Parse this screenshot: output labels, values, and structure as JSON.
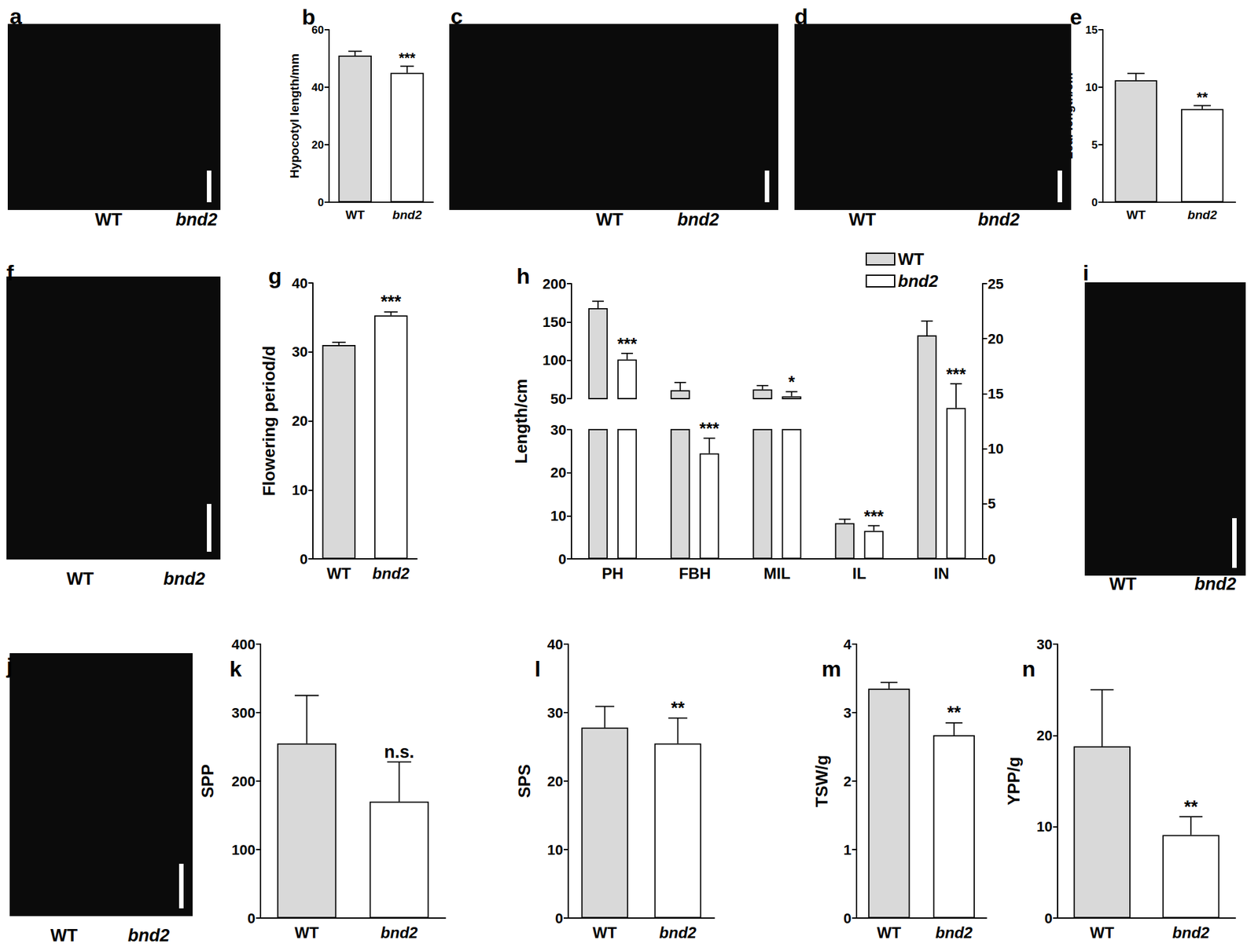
{
  "photos": [
    {
      "letter": "a",
      "labels": [
        "WT",
        "bnd2"
      ]
    },
    {
      "letter": "c",
      "labels": [
        "WT",
        "bnd2"
      ]
    },
    {
      "letter": "d",
      "labels": [
        "WT",
        "bnd2"
      ]
    },
    {
      "letter": "f",
      "labels": [
        "WT",
        "bnd2"
      ]
    },
    {
      "letter": "i",
      "labels": [
        "WT",
        "bnd2"
      ]
    },
    {
      "letter": "j",
      "labels": [
        "WT",
        "bnd2"
      ]
    }
  ],
  "chart_data": [
    {
      "type": "bar",
      "title": "b",
      "ylabel": "Hypocotyl length/mm",
      "categories": [
        "WT",
        "bnd2"
      ],
      "values": [
        51,
        45
      ],
      "errors": [
        1.5,
        2.3
      ],
      "annotations": [
        null,
        "***"
      ],
      "colors": [
        "#d9d9d9",
        "#ffffff"
      ],
      "ylim": [
        0,
        60
      ],
      "yticks": [
        0,
        20,
        40,
        60
      ],
      "grid": false
    },
    {
      "type": "bar",
      "title": "e",
      "ylabel": "Leaf length/cm",
      "categories": [
        "WT",
        "bnd2"
      ],
      "values": [
        10.6,
        8.1
      ],
      "errors": [
        0.6,
        0.3
      ],
      "annotations": [
        null,
        "**"
      ],
      "colors": [
        "#d9d9d9",
        "#ffffff"
      ],
      "ylim": [
        0,
        15
      ],
      "yticks": [
        0,
        5,
        10,
        15
      ],
      "grid": false
    },
    {
      "type": "bar",
      "title": "g",
      "ylabel": "Flowering period/d",
      "categories": [
        "WT",
        "bnd2"
      ],
      "values": [
        31,
        35.3
      ],
      "errors": [
        0.4,
        0.5
      ],
      "annotations": [
        null,
        "***"
      ],
      "colors": [
        "#d9d9d9",
        "#ffffff"
      ],
      "ylim": [
        0,
        40
      ],
      "yticks": [
        0,
        10,
        20,
        30,
        40
      ],
      "grid": false
    },
    {
      "type": "bar",
      "title": "h",
      "ylabel": "Length/cm",
      "categories": [
        "PH",
        "FBH",
        "MIL",
        "IL",
        "IN"
      ],
      "ylim": [
        0,
        200
      ],
      "ybreak": [
        30,
        50
      ],
      "yticks": [
        0,
        10,
        20,
        30,
        50,
        100,
        150,
        200
      ],
      "y2lim": [
        0,
        25
      ],
      "y2ticks": [
        0,
        5,
        10,
        15,
        20,
        25
      ],
      "legend": "upper right",
      "grid": false,
      "series": [
        {
          "name": "WT",
          "color": "#d9d9d9",
          "values": [
            168,
            61,
            62,
            8.3,
            null
          ],
          "errors": [
            9,
            10,
            5,
            0.9,
            null
          ]
        },
        {
          "name": "bnd2",
          "color": "#ffffff",
          "values": [
            101,
            24.5,
            53,
            6.5,
            null
          ],
          "errors": [
            8,
            3.5,
            6,
            1.2,
            null
          ],
          "annotations": [
            "***",
            "***",
            "*",
            "***",
            null
          ]
        },
        {
          "name": "WT",
          "color": "#d9d9d9",
          "axis": "y2",
          "values": [
            null,
            null,
            null,
            null,
            20.3
          ],
          "errors": [
            null,
            null,
            null,
            null,
            1.3
          ]
        },
        {
          "name": "bnd2",
          "color": "#ffffff",
          "axis": "y2",
          "values": [
            null,
            null,
            null,
            null,
            13.7
          ],
          "errors": [
            null,
            null,
            null,
            null,
            2.2
          ],
          "annotations": [
            null,
            null,
            null,
            null,
            "***"
          ]
        }
      ]
    },
    {
      "type": "bar",
      "title": "k",
      "ylabel": "SPP",
      "categories": [
        "WT",
        "bnd2"
      ],
      "values": [
        255,
        170
      ],
      "errors": [
        70,
        58
      ],
      "annotations": [
        null,
        "n.s."
      ],
      "colors": [
        "#d9d9d9",
        "#ffffff"
      ],
      "ylim": [
        0,
        400
      ],
      "yticks": [
        0,
        100,
        200,
        300,
        400
      ],
      "grid": false
    },
    {
      "type": "bar",
      "title": "l",
      "ylabel": "SPS",
      "categories": [
        "WT",
        "bnd2"
      ],
      "values": [
        27.8,
        25.5
      ],
      "errors": [
        3.1,
        3.7
      ],
      "annotations": [
        null,
        "**"
      ],
      "colors": [
        "#d9d9d9",
        "#ffffff"
      ],
      "ylim": [
        0,
        40
      ],
      "yticks": [
        0,
        10,
        20,
        30,
        40
      ],
      "grid": false
    },
    {
      "type": "bar",
      "title": "m",
      "ylabel": "TSW/g",
      "categories": [
        "WT",
        "bnd2"
      ],
      "values": [
        3.35,
        2.67
      ],
      "errors": [
        0.09,
        0.18
      ],
      "annotations": [
        null,
        "**"
      ],
      "colors": [
        "#d9d9d9",
        "#ffffff"
      ],
      "ylim": [
        0,
        4
      ],
      "yticks": [
        0,
        1,
        2,
        3,
        4
      ],
      "grid": false
    },
    {
      "type": "bar",
      "title": "n",
      "ylabel": "YPP/g",
      "categories": [
        "WT",
        "bnd2"
      ],
      "values": [
        18.8,
        9.1
      ],
      "errors": [
        6.2,
        2.0
      ],
      "annotations": [
        null,
        "**"
      ],
      "colors": [
        "#d9d9d9",
        "#ffffff"
      ],
      "ylim": [
        0,
        30
      ],
      "yticks": [
        0,
        10,
        20,
        30
      ],
      "grid": false
    }
  ]
}
